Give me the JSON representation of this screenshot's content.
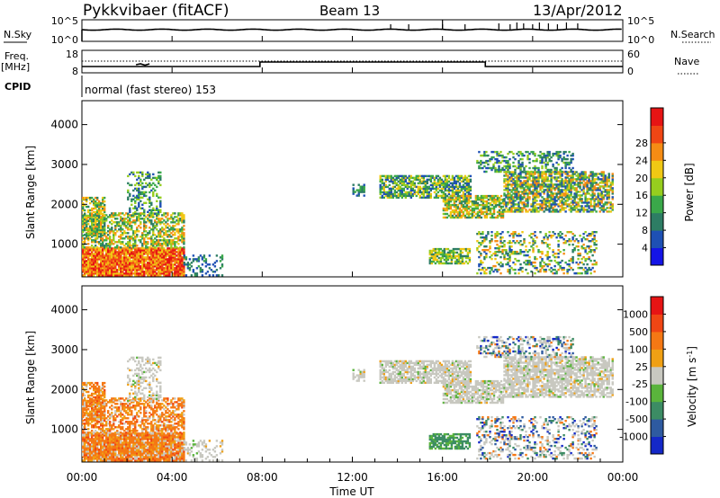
{
  "header": {
    "station": "Pykkvibaer (fitACF)",
    "beam": "Beam 13",
    "date": "13/Apr/2012"
  },
  "sky_panel": {
    "left_label": "N.Sky",
    "left_ticks": [
      "10^5",
      "10^0"
    ],
    "right_ticks": [
      "10^5",
      "10^0"
    ],
    "right_label": "N.Search"
  },
  "freq_panel": {
    "left_label_1": "Freq.",
    "left_label_2": "[MHz]",
    "left_ticks": [
      "18",
      "8"
    ],
    "right_ticks": [
      "60",
      "0"
    ],
    "right_label": "Nave"
  },
  "cpid": {
    "label": "CPID",
    "value": "normal (fast stereo) 153"
  },
  "chart_data": [
    {
      "type": "heatmap",
      "title": "",
      "ylabel": "Slant Range [km]",
      "ylim": [
        180,
        4600
      ],
      "yticks": [
        "1000",
        "2000",
        "3000",
        "4000"
      ],
      "colorbar": {
        "label": "Power [dB]",
        "ticks": [
          "4",
          "8",
          "12",
          "16",
          "20",
          "24",
          "28"
        ],
        "colors": [
          "#1414e6",
          "#1e50b4",
          "#2d7d64",
          "#3aa84a",
          "#96cd1e",
          "#f0c814",
          "#f58c14",
          "#f04614",
          "#e61414"
        ]
      }
    },
    {
      "type": "heatmap",
      "title": "",
      "ylabel": "Slant Range [km]",
      "ylim": [
        180,
        4600
      ],
      "yticks": [
        "1000",
        "2000",
        "3000",
        "4000"
      ],
      "colorbar": {
        "label": "Velocity [m s",
        "label_sup": "-1",
        "label_end": "]",
        "ticks": [
          "1000",
          "500",
          "100",
          "25",
          "-25",
          "-100",
          "-500",
          "-1000"
        ],
        "colors": [
          "#1428c8",
          "#2e5aa0",
          "#3c8c64",
          "#5ab43c",
          "#c8c8c0",
          "#f0a014",
          "#f57814",
          "#f04614",
          "#e61414"
        ]
      }
    }
  ],
  "time_axis": {
    "label": "Time UT",
    "ticks": [
      "00:00",
      "04:00",
      "08:00",
      "12:00",
      "16:00",
      "20:00",
      "00:00"
    ],
    "range_hours": [
      0,
      24
    ]
  }
}
